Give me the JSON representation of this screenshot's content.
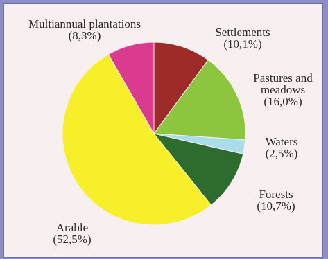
{
  "chart_data": {
    "type": "pie",
    "slices": [
      {
        "label": "Settlements",
        "value": 10.1,
        "pct_text": "(10,1%)",
        "color": "#9e2b27"
      },
      {
        "label": "Pastures and meadows",
        "label_line1": "Pastures and",
        "label_line2": "meadows",
        "value": 16.0,
        "pct_text": "(16,0%)",
        "color": "#8cc63f"
      },
      {
        "label": "Waters",
        "value": 2.5,
        "pct_text": "(2,5%)",
        "color": "#a8dde9"
      },
      {
        "label": "Forests",
        "value": 10.7,
        "pct_text": "(10,7%)",
        "color": "#2e6b2f"
      },
      {
        "label": "Arable",
        "value": 52.5,
        "pct_text": "(52,5%)",
        "color": "#f7ef2a"
      },
      {
        "label": "Multiannual plantations",
        "value": 8.3,
        "pct_text": "(8,3%)",
        "color": "#db3b8e"
      }
    ]
  }
}
